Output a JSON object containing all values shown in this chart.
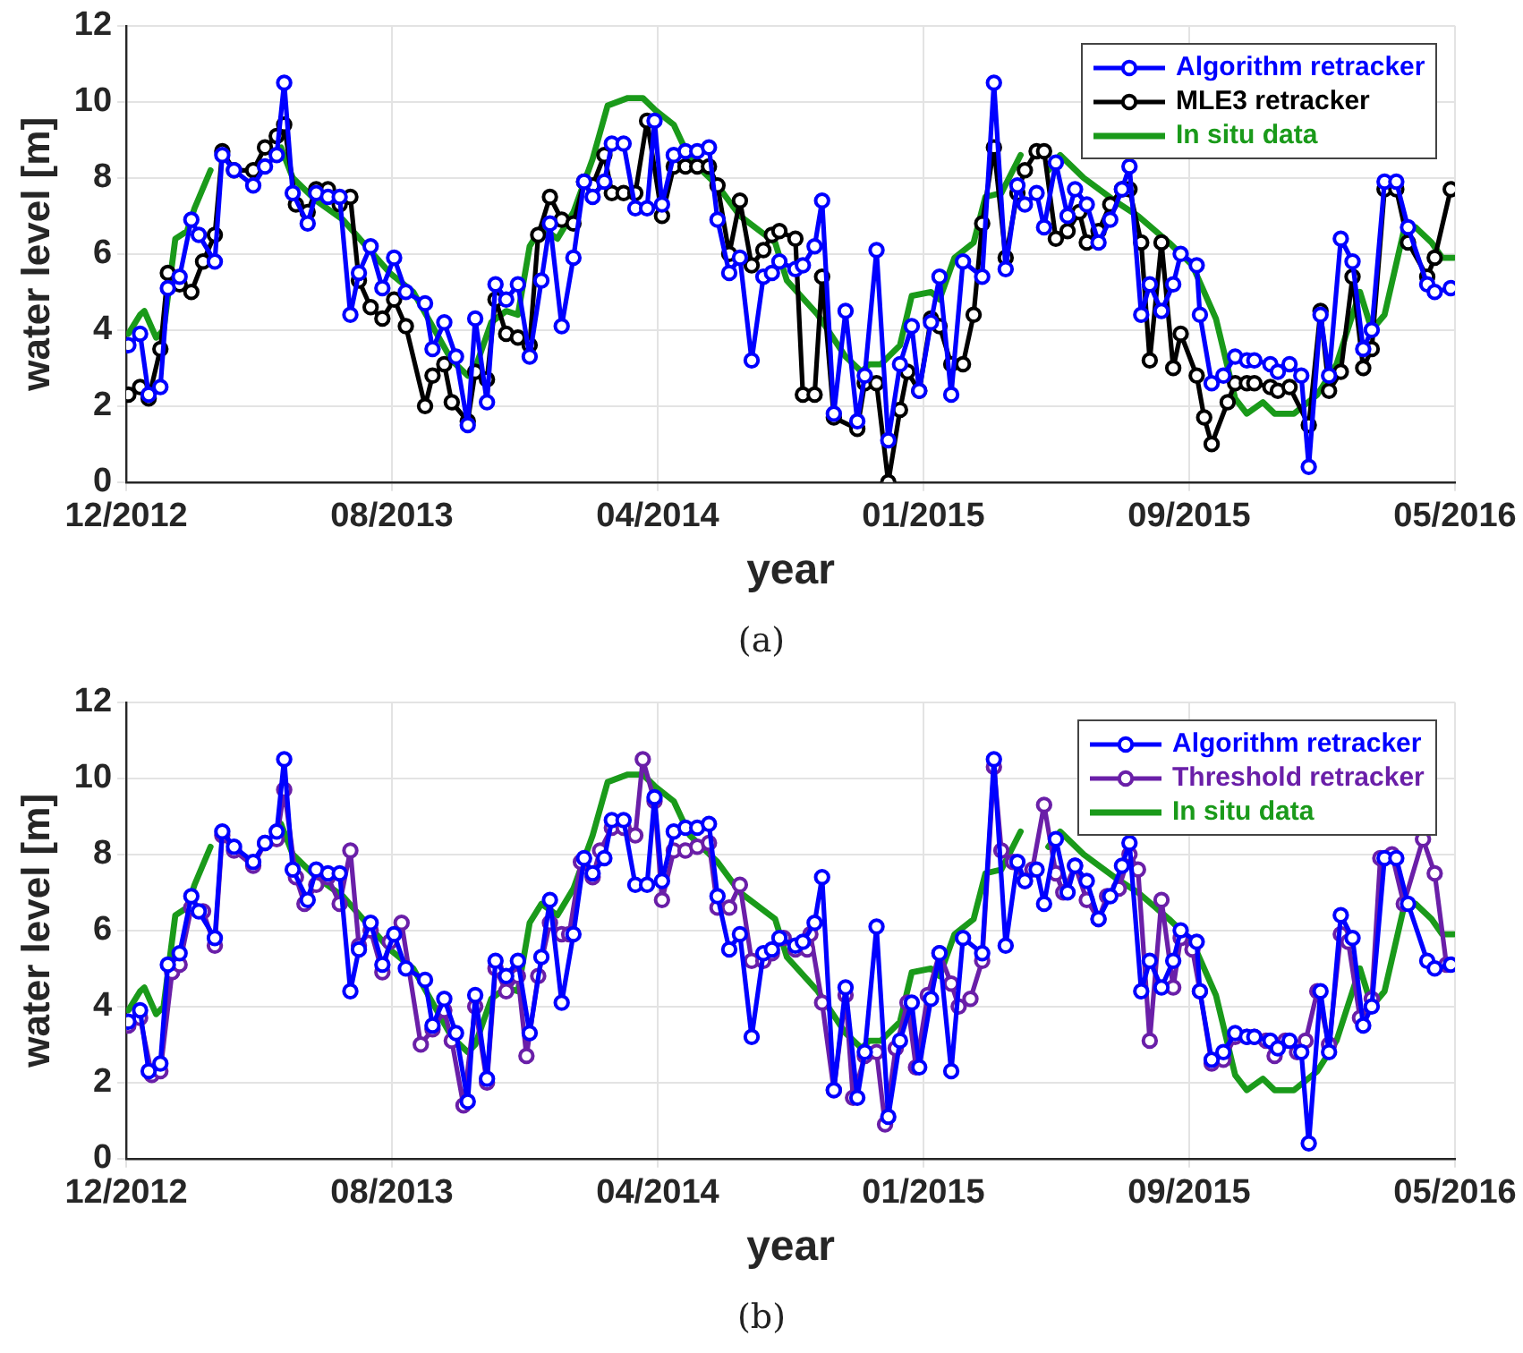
{
  "chart_data": [
    {
      "type": "line",
      "xlabel": "year",
      "ylabel": "water level [m]",
      "annotations": [
        "(a)"
      ],
      "xlim": [
        "2012-12-15",
        "2016-05-13"
      ],
      "xticks": [
        {
          "value": "2012-12-15",
          "label": "12/2012"
        },
        {
          "value": "2013-08-21",
          "label": "08/2013"
        },
        {
          "value": "2014-04-27",
          "label": "04/2014"
        },
        {
          "value": "2015-01-01",
          "label": "01/2015"
        },
        {
          "value": "2015-09-07",
          "label": "09/2015"
        },
        {
          "value": "2016-05-13",
          "label": "05/2016"
        }
      ],
      "ylim": [
        0,
        12
      ],
      "yticks": [
        0,
        2,
        4,
        6,
        8,
        10,
        12
      ],
      "grid": true,
      "legend": "top right",
      "marker": "circle",
      "line_style": "solid",
      "series": [
        {
          "name": "Algorithm retracker",
          "color": "#0000ff",
          "x": [
            "2012-12-17",
            "2012-12-28",
            "2013-01-05",
            "2013-01-16",
            "2013-01-23",
            "2013-02-03",
            "2013-02-14",
            "2013-02-21",
            "2013-03-08",
            "2013-03-15",
            "2013-03-26",
            "2013-04-13",
            "2013-04-24",
            "2013-05-05",
            "2013-05-12",
            "2013-05-20",
            "2013-06-03",
            "2013-06-11",
            "2013-06-22",
            "2013-07-03",
            "2013-07-13",
            "2013-07-21",
            "2013-08-01",
            "2013-08-12",
            "2013-08-23",
            "2013-09-03",
            "2013-09-21",
            "2013-09-28",
            "2013-10-09",
            "2013-10-20",
            "2013-10-31",
            "2013-11-07",
            "2013-11-18",
            "2013-11-26",
            "2013-12-06",
            "2013-12-17",
            "2013-12-28",
            "2014-01-08",
            "2014-01-16",
            "2014-01-27",
            "2014-02-07",
            "2014-02-17",
            "2014-02-25",
            "2014-03-08",
            "2014-03-15",
            "2014-03-26",
            "2014-04-06",
            "2014-04-17",
            "2014-04-24",
            "2014-05-01",
            "2014-05-12",
            "2014-05-23",
            "2014-06-03",
            "2014-06-14",
            "2014-06-22",
            "2014-07-03",
            "2014-07-13",
            "2014-07-24",
            "2014-08-04",
            "2014-08-12",
            "2014-08-19",
            "2014-09-03",
            "2014-09-10",
            "2014-09-21",
            "2014-09-28",
            "2014-10-09",
            "2014-10-20",
            "2014-10-31",
            "2014-11-07",
            "2014-11-18",
            "2014-11-29",
            "2014-12-10",
            "2014-12-21",
            "2014-12-28",
            "2015-01-08",
            "2015-01-16",
            "2015-01-27",
            "2015-02-07",
            "2015-02-25",
            "2015-03-08",
            "2015-03-19",
            "2015-03-30",
            "2015-04-06",
            "2015-04-17",
            "2015-04-24",
            "2015-05-05",
            "2015-05-16",
            "2015-05-23",
            "2015-06-03",
            "2015-06-14",
            "2015-06-25",
            "2015-07-06",
            "2015-07-13",
            "2015-07-24",
            "2015-08-01",
            "2015-08-12",
            "2015-08-23",
            "2015-08-30",
            "2015-09-14",
            "2015-09-17",
            "2015-09-28",
            "2015-10-09",
            "2015-10-20",
            "2015-10-31",
            "2015-11-07",
            "2015-11-22",
            "2015-11-29",
            "2015-12-10",
            "2015-12-21",
            "2015-12-28",
            "2016-01-08",
            "2016-01-16",
            "2016-01-27",
            "2016-02-07",
            "2016-02-17",
            "2016-02-25",
            "2016-03-08",
            "2016-03-19",
            "2016-03-30",
            "2016-04-17",
            "2016-04-24",
            "2016-05-09"
          ],
          "values": [
            3.6,
            3.9,
            2.3,
            2.5,
            5.1,
            5.4,
            6.9,
            6.5,
            5.8,
            8.6,
            8.2,
            7.8,
            8.3,
            8.6,
            10.5,
            7.6,
            6.8,
            7.6,
            7.5,
            7.5,
            4.4,
            5.5,
            6.2,
            5.1,
            5.9,
            5.0,
            4.7,
            3.5,
            4.2,
            3.3,
            1.5,
            4.3,
            2.1,
            5.2,
            4.8,
            5.2,
            3.3,
            5.3,
            6.8,
            4.1,
            5.9,
            7.9,
            7.5,
            7.9,
            8.9,
            8.9,
            7.2,
            7.2,
            9.5,
            7.3,
            8.6,
            8.7,
            8.7,
            8.8,
            6.9,
            5.5,
            5.9,
            3.2,
            5.4,
            5.5,
            5.8,
            5.6,
            5.7,
            6.2,
            7.4,
            1.8,
            4.5,
            1.6,
            2.8,
            6.1,
            1.1,
            3.1,
            4.1,
            2.4,
            4.2,
            5.4,
            2.3,
            5.8,
            5.4,
            10.5,
            5.6,
            7.8,
            7.3,
            7.6,
            6.7,
            8.4,
            7.0,
            7.7,
            7.3,
            6.3,
            6.9,
            7.7,
            8.3,
            4.4,
            5.2,
            4.5,
            5.2,
            6.0,
            5.7,
            4.4,
            2.6,
            2.8,
            3.3,
            3.2,
            3.2,
            3.1,
            2.9,
            3.1,
            2.8,
            0.4,
            4.4,
            2.8,
            6.4,
            5.8,
            3.5,
            4.0,
            7.9,
            7.9,
            6.7,
            5.2,
            5.0,
            5.1
          ]
        },
        {
          "name": "MLE3 retracker",
          "color": "#000000",
          "x": [
            "2012-12-17",
            "2012-12-28",
            "2013-01-05",
            "2013-01-16",
            "2013-01-23",
            "2013-02-03",
            "2013-02-14",
            "2013-02-25",
            "2013-03-08",
            "2013-03-15",
            "2013-03-26",
            "2013-04-13",
            "2013-04-24",
            "2013-05-05",
            "2013-05-12",
            "2013-05-23",
            "2013-06-03",
            "2013-06-11",
            "2013-06-22",
            "2013-07-03",
            "2013-07-13",
            "2013-07-21",
            "2013-08-01",
            "2013-08-12",
            "2013-08-23",
            "2013-09-03",
            "2013-09-21",
            "2013-09-28",
            "2013-10-09",
            "2013-10-16",
            "2013-10-31",
            "2013-11-07",
            "2013-11-18",
            "2013-11-26",
            "2013-12-06",
            "2013-12-17",
            "2013-12-28",
            "2014-01-05",
            "2014-01-16",
            "2014-01-27",
            "2014-02-07",
            "2014-02-17",
            "2014-02-25",
            "2014-03-08",
            "2014-03-15",
            "2014-03-26",
            "2014-04-06",
            "2014-04-17",
            "2014-05-01",
            "2014-05-12",
            "2014-05-23",
            "2014-06-03",
            "2014-06-14",
            "2014-06-22",
            "2014-07-03",
            "2014-07-13",
            "2014-07-24",
            "2014-08-04",
            "2014-08-12",
            "2014-08-19",
            "2014-09-03",
            "2014-09-10",
            "2014-09-21",
            "2014-09-28",
            "2014-10-09",
            "2014-10-31",
            "2014-11-07",
            "2014-11-18",
            "2014-11-29",
            "2014-12-10",
            "2014-12-17",
            "2014-12-28",
            "2015-01-08",
            "2015-01-16",
            "2015-01-27",
            "2015-02-07",
            "2015-02-17",
            "2015-02-25",
            "2015-03-08",
            "2015-03-19",
            "2015-03-30",
            "2015-04-06",
            "2015-04-17",
            "2015-04-24",
            "2015-05-05",
            "2015-05-16",
            "2015-05-27",
            "2015-06-03",
            "2015-06-14",
            "2015-06-25",
            "2015-07-06",
            "2015-07-13",
            "2015-07-24",
            "2015-08-01",
            "2015-08-12",
            "2015-08-23",
            "2015-08-30",
            "2015-09-14",
            "2015-09-21",
            "2015-09-28",
            "2015-10-13",
            "2015-10-20",
            "2015-10-31",
            "2015-11-07",
            "2015-11-22",
            "2015-11-29",
            "2015-12-10",
            "2015-12-28",
            "2016-01-08",
            "2016-01-16",
            "2016-01-27",
            "2016-02-07",
            "2016-02-17",
            "2016-02-25",
            "2016-03-08",
            "2016-03-19",
            "2016-03-30",
            "2016-04-17",
            "2016-04-24",
            "2016-05-09"
          ],
          "values": [
            2.3,
            2.5,
            2.2,
            3.5,
            5.5,
            5.2,
            5.0,
            5.8,
            6.5,
            8.7,
            8.2,
            8.2,
            8.8,
            9.1,
            9.4,
            7.3,
            7.1,
            7.7,
            7.7,
            7.3,
            7.5,
            5.3,
            4.6,
            4.3,
            4.8,
            4.1,
            2.0,
            2.8,
            3.1,
            2.1,
            1.6,
            2.9,
            2.7,
            4.8,
            3.9,
            3.8,
            3.6,
            6.5,
            7.5,
            6.9,
            6.8,
            7.9,
            7.8,
            8.6,
            7.6,
            7.6,
            7.6,
            9.5,
            7.0,
            8.3,
            8.3,
            8.3,
            8.3,
            7.8,
            6.0,
            7.4,
            5.7,
            6.1,
            6.5,
            6.6,
            6.4,
            2.3,
            2.3,
            5.4,
            1.7,
            1.4,
            2.6,
            2.6,
            0.0,
            1.9,
            2.9,
            2.4,
            4.3,
            4.1,
            3.1,
            3.1,
            4.4,
            6.8,
            8.8,
            5.9,
            7.6,
            8.2,
            8.7,
            8.7,
            6.4,
            6.6,
            7.1,
            6.3,
            6.6,
            7.3,
            7.7,
            7.7,
            6.3,
            3.2,
            6.3,
            3.0,
            3.9,
            2.8,
            1.7,
            1.0,
            2.1,
            2.6,
            2.6,
            2.6,
            2.5,
            2.4,
            2.5,
            1.5,
            4.5,
            2.4,
            2.9,
            5.4,
            3.0,
            3.5,
            7.7,
            7.7,
            6.3,
            5.4,
            5.9,
            7.7
          ]
        },
        {
          "name": "In situ data",
          "color": "#1a9a1a",
          "marker": "none",
          "x": [
            "2012-12-17",
            "2012-12-28",
            "2013-01-01",
            "2013-01-12",
            "2013-01-19",
            "2013-01-30",
            "2013-02-10",
            "2013-02-17",
            "2013-03-04",
            "2013-04-06",
            "2013-05-09",
            "2013-05-20",
            "2013-06-11",
            "2013-07-06",
            "2013-07-28",
            "2013-08-19",
            "2013-09-10",
            "2013-10-02",
            "2013-10-16",
            "2013-10-31",
            "2013-11-07",
            "2013-11-22",
            "2013-12-06",
            "2013-12-17",
            "2013-12-28",
            "2014-01-08",
            "2014-01-23",
            "2014-02-07",
            "2014-02-25",
            "2014-03-11",
            "2014-03-30",
            "2014-04-13",
            "2014-04-24",
            "2014-05-12",
            "2014-05-27",
            "2014-06-22",
            "2014-07-13",
            "2014-08-15",
            "2014-08-26",
            "2014-09-24",
            "2014-10-20",
            "2014-11-04",
            "2014-11-11",
            "2014-11-22",
            "2014-12-10",
            "2014-12-21",
            "2015-01-08",
            "2015-01-16",
            "2015-01-30",
            "2015-02-17",
            "2015-02-28",
            "2015-03-15",
            "2015-04-02",
            "2015-04-13",
            "2015-04-28",
            "2015-05-09",
            "2015-05-31",
            "2015-06-29",
            "2015-07-21",
            "2015-08-19",
            "2015-09-10",
            "2015-10-02",
            "2015-10-20",
            "2015-10-31",
            "2015-11-15",
            "2015-11-26",
            "2015-12-14",
            "2016-01-05",
            "2016-01-23",
            "2016-02-07",
            "2016-02-14",
            "2016-02-25",
            "2016-03-08",
            "2016-03-26",
            "2016-04-06",
            "2016-04-21",
            "2016-05-01",
            "2016-05-12"
          ],
          "values": [
            3.9,
            4.4,
            4.5,
            3.8,
            4.0,
            6.4,
            6.6,
            7.2,
            8.2,
            null,
            8.8,
            8.0,
            7.4,
            6.9,
            6.2,
            5.5,
            5.0,
            3.9,
            3.2,
            2.8,
            3.0,
            4.2,
            4.5,
            4.4,
            6.2,
            6.7,
            6.4,
            7.1,
            8.5,
            9.9,
            10.1,
            10.1,
            9.8,
            9.4,
            8.5,
            7.8,
            7.0,
            6.3,
            5.3,
            4.4,
            3.3,
            2.9,
            3.1,
            3.1,
            3.6,
            4.9,
            5.0,
            4.8,
            5.9,
            6.3,
            7.5,
            7.6,
            8.6,
            null,
            8.2,
            8.6,
            8.0,
            7.4,
            7.0,
            6.3,
            5.7,
            4.3,
            2.2,
            1.8,
            2.1,
            1.8,
            1.8,
            2.3,
            3.1,
            4.4,
            5.0,
            4.0,
            4.4,
            6.6,
            6.7,
            6.3,
            5.9,
            5.9
          ]
        }
      ]
    },
    {
      "type": "line",
      "xlabel": "year",
      "ylabel": "water level [m]",
      "annotations": [
        "(b)"
      ],
      "xlim": [
        "2012-12-15",
        "2016-05-13"
      ],
      "xticks": [
        {
          "value": "2012-12-15",
          "label": "12/2012"
        },
        {
          "value": "2013-08-21",
          "label": "08/2013"
        },
        {
          "value": "2014-04-27",
          "label": "04/2014"
        },
        {
          "value": "2015-01-01",
          "label": "01/2015"
        },
        {
          "value": "2015-09-07",
          "label": "09/2015"
        },
        {
          "value": "2016-05-13",
          "label": "05/2016"
        }
      ],
      "ylim": [
        0,
        12
      ],
      "yticks": [
        0,
        2,
        4,
        6,
        8,
        10,
        12
      ],
      "grid": true,
      "legend": "top right",
      "marker": "circle",
      "line_style": "solid",
      "series": [
        {
          "name": "Algorithm retracker",
          "color": "#0000ff",
          "x": [
            "2012-12-17",
            "2012-12-28",
            "2013-01-05",
            "2013-01-16",
            "2013-01-23",
            "2013-02-03",
            "2013-02-14",
            "2013-02-21",
            "2013-03-08",
            "2013-03-15",
            "2013-03-26",
            "2013-04-13",
            "2013-04-24",
            "2013-05-05",
            "2013-05-12",
            "2013-05-20",
            "2013-06-03",
            "2013-06-11",
            "2013-06-22",
            "2013-07-03",
            "2013-07-13",
            "2013-07-21",
            "2013-08-01",
            "2013-08-12",
            "2013-08-23",
            "2013-09-03",
            "2013-09-21",
            "2013-09-28",
            "2013-10-09",
            "2013-10-20",
            "2013-10-31",
            "2013-11-07",
            "2013-11-18",
            "2013-11-26",
            "2013-12-06",
            "2013-12-17",
            "2013-12-28",
            "2014-01-08",
            "2014-01-16",
            "2014-01-27",
            "2014-02-07",
            "2014-02-17",
            "2014-02-25",
            "2014-03-08",
            "2014-03-15",
            "2014-03-26",
            "2014-04-06",
            "2014-04-17",
            "2014-04-24",
            "2014-05-01",
            "2014-05-12",
            "2014-05-23",
            "2014-06-03",
            "2014-06-14",
            "2014-06-22",
            "2014-07-03",
            "2014-07-13",
            "2014-07-24",
            "2014-08-04",
            "2014-08-12",
            "2014-08-19",
            "2014-09-03",
            "2014-09-10",
            "2014-09-21",
            "2014-09-28",
            "2014-10-09",
            "2014-10-20",
            "2014-10-31",
            "2014-11-07",
            "2014-11-18",
            "2014-11-29",
            "2014-12-10",
            "2014-12-21",
            "2014-12-28",
            "2015-01-08",
            "2015-01-16",
            "2015-01-27",
            "2015-02-07",
            "2015-02-25",
            "2015-03-08",
            "2015-03-19",
            "2015-03-30",
            "2015-04-06",
            "2015-04-17",
            "2015-04-24",
            "2015-05-05",
            "2015-05-16",
            "2015-05-23",
            "2015-06-03",
            "2015-06-14",
            "2015-06-25",
            "2015-07-06",
            "2015-07-13",
            "2015-07-24",
            "2015-08-01",
            "2015-08-12",
            "2015-08-23",
            "2015-08-30",
            "2015-09-14",
            "2015-09-17",
            "2015-09-28",
            "2015-10-09",
            "2015-10-20",
            "2015-10-31",
            "2015-11-07",
            "2015-11-22",
            "2015-11-29",
            "2015-12-10",
            "2015-12-21",
            "2015-12-28",
            "2016-01-08",
            "2016-01-16",
            "2016-01-27",
            "2016-02-07",
            "2016-02-17",
            "2016-02-25",
            "2016-03-08",
            "2016-03-19",
            "2016-03-30",
            "2016-04-17",
            "2016-04-24",
            "2016-05-09"
          ],
          "values": [
            3.6,
            3.9,
            2.3,
            2.5,
            5.1,
            5.4,
            6.9,
            6.5,
            5.8,
            8.6,
            8.2,
            7.8,
            8.3,
            8.6,
            10.5,
            7.6,
            6.8,
            7.6,
            7.5,
            7.5,
            4.4,
            5.5,
            6.2,
            5.1,
            5.9,
            5.0,
            4.7,
            3.5,
            4.2,
            3.3,
            1.5,
            4.3,
            2.1,
            5.2,
            4.8,
            5.2,
            3.3,
            5.3,
            6.8,
            4.1,
            5.9,
            7.9,
            7.5,
            7.9,
            8.9,
            8.9,
            7.2,
            7.2,
            9.5,
            7.3,
            8.6,
            8.7,
            8.7,
            8.8,
            6.9,
            5.5,
            5.9,
            3.2,
            5.4,
            5.5,
            5.8,
            5.6,
            5.7,
            6.2,
            7.4,
            1.8,
            4.5,
            1.6,
            2.8,
            6.1,
            1.1,
            3.1,
            4.1,
            2.4,
            4.2,
            5.4,
            2.3,
            5.8,
            5.4,
            10.5,
            5.6,
            7.8,
            7.3,
            7.6,
            6.7,
            8.4,
            7.0,
            7.7,
            7.3,
            6.3,
            6.9,
            7.7,
            8.3,
            4.4,
            5.2,
            4.5,
            5.2,
            6.0,
            5.7,
            4.4,
            2.6,
            2.8,
            3.3,
            3.2,
            3.2,
            3.1,
            2.9,
            3.1,
            2.8,
            0.4,
            4.4,
            2.8,
            6.4,
            5.8,
            3.5,
            4.0,
            7.9,
            7.9,
            6.7,
            5.2,
            5.0,
            5.1
          ]
        },
        {
          "name": "Threshold retracker",
          "color": "#6a1fa8",
          "x": [
            "2012-12-17",
            "2012-12-28",
            "2013-01-08",
            "2013-01-16",
            "2013-01-27",
            "2013-02-03",
            "2013-02-14",
            "2013-02-25",
            "2013-03-08",
            "2013-03-15",
            "2013-03-26",
            "2013-04-13",
            "2013-04-24",
            "2013-05-05",
            "2013-05-12",
            "2013-05-23",
            "2013-05-31",
            "2013-06-11",
            "2013-06-22",
            "2013-07-03",
            "2013-07-13",
            "2013-07-21",
            "2013-08-01",
            "2013-08-12",
            "2013-08-19",
            "2013-08-30",
            "2013-09-17",
            "2013-09-28",
            "2013-10-09",
            "2013-10-16",
            "2013-10-27",
            "2013-11-07",
            "2013-11-18",
            "2013-11-26",
            "2013-12-06",
            "2013-12-17",
            "2013-12-25",
            "2014-01-05",
            "2014-01-16",
            "2014-01-27",
            "2014-02-03",
            "2014-02-14",
            "2014-02-25",
            "2014-03-04",
            "2014-03-15",
            "2014-03-26",
            "2014-04-06",
            "2014-04-13",
            "2014-04-24",
            "2014-05-01",
            "2014-05-12",
            "2014-05-23",
            "2014-06-03",
            "2014-06-14",
            "2014-06-22",
            "2014-07-03",
            "2014-07-13",
            "2014-07-24",
            "2014-08-04",
            "2014-08-12",
            "2014-08-23",
            "2014-09-03",
            "2014-09-14",
            "2014-09-17",
            "2014-09-28",
            "2014-10-09",
            "2014-10-20",
            "2014-10-27",
            "2014-11-07",
            "2014-11-18",
            "2014-11-26",
            "2014-12-06",
            "2014-12-17",
            "2014-12-25",
            "2015-01-05",
            "2015-01-16",
            "2015-01-27",
            "2015-02-03",
            "2015-02-14",
            "2015-02-25",
            "2015-03-08",
            "2015-03-15",
            "2015-03-26",
            "2015-04-06",
            "2015-04-13",
            "2015-04-24",
            "2015-05-05",
            "2015-05-12",
            "2015-05-23",
            "2015-06-03",
            "2015-06-14",
            "2015-06-22",
            "2015-07-03",
            "2015-07-13",
            "2015-07-21",
            "2015-08-01",
            "2015-08-12",
            "2015-08-23",
            "2015-08-30",
            "2015-09-10",
            "2015-09-17",
            "2015-09-28",
            "2015-10-09",
            "2015-10-20",
            "2015-10-31",
            "2015-11-07",
            "2015-11-18",
            "2015-11-26",
            "2015-12-06",
            "2015-12-17",
            "2015-12-25",
            "2016-01-05",
            "2016-01-16",
            "2016-01-27",
            "2016-02-03",
            "2016-02-14",
            "2016-02-25",
            "2016-03-04",
            "2016-03-15",
            "2016-03-26",
            "2016-04-13",
            "2016-04-24",
            "2016-05-05"
          ],
          "values": [
            3.5,
            3.7,
            2.2,
            2.3,
            4.9,
            5.1,
            6.6,
            6.5,
            5.6,
            8.5,
            8.1,
            7.7,
            8.3,
            8.4,
            9.7,
            7.4,
            6.7,
            7.2,
            7.4,
            6.7,
            8.1,
            5.6,
            6.0,
            4.9,
            5.7,
            6.2,
            3.0,
            3.4,
            3.9,
            3.1,
            1.4,
            4.0,
            2.0,
            5.0,
            4.4,
            4.8,
            2.7,
            4.8,
            6.2,
            5.9,
            5.9,
            7.8,
            7.4,
            8.1,
            8.7,
            8.7,
            8.5,
            10.5,
            9.4,
            6.8,
            8.1,
            8.1,
            8.2,
            8.3,
            6.6,
            6.6,
            7.2,
            5.2,
            5.2,
            5.4,
            5.8,
            5.5,
            5.5,
            5.9,
            4.1,
            1.8,
            4.3,
            1.6,
            2.7,
            2.8,
            0.9,
            2.9,
            4.1,
            2.4,
            4.3,
            5.4,
            4.6,
            4.0,
            4.2,
            5.2,
            10.3,
            8.1,
            7.8,
            7.3,
            7.6,
            9.3,
            7.5,
            7.0,
            7.7,
            6.8,
            6.3,
            6.9,
            7.1,
            8.0,
            7.6,
            3.1,
            6.8,
            4.5,
            5.8,
            5.5,
            4.4,
            2.5,
            2.6,
            3.2,
            3.2,
            3.2,
            3.1,
            2.7,
            3.1,
            2.8,
            3.1,
            4.4,
            3.0,
            5.9,
            5.7,
            3.7,
            4.2,
            7.9,
            8.0,
            6.7,
            8.4,
            7.5,
            5.1
          ]
        },
        {
          "name": "In situ data",
          "color": "#1a9a1a",
          "marker": "none",
          "x": [
            "2012-12-17",
            "2012-12-28",
            "2013-01-01",
            "2013-01-12",
            "2013-01-19",
            "2013-01-30",
            "2013-02-10",
            "2013-02-17",
            "2013-03-04",
            "2013-04-06",
            "2013-05-09",
            "2013-05-20",
            "2013-06-11",
            "2013-07-06",
            "2013-07-28",
            "2013-08-19",
            "2013-09-10",
            "2013-10-02",
            "2013-10-16",
            "2013-10-31",
            "2013-11-07",
            "2013-11-22",
            "2013-12-06",
            "2013-12-17",
            "2013-12-28",
            "2014-01-08",
            "2014-01-23",
            "2014-02-07",
            "2014-02-25",
            "2014-03-11",
            "2014-03-30",
            "2014-04-13",
            "2014-04-24",
            "2014-05-12",
            "2014-05-27",
            "2014-06-22",
            "2014-07-13",
            "2014-08-15",
            "2014-08-26",
            "2014-09-24",
            "2014-10-20",
            "2014-11-04",
            "2014-11-11",
            "2014-11-22",
            "2014-12-10",
            "2014-12-21",
            "2015-01-08",
            "2015-01-16",
            "2015-01-30",
            "2015-02-17",
            "2015-02-28",
            "2015-03-15",
            "2015-04-02",
            "2015-04-13",
            "2015-04-28",
            "2015-05-09",
            "2015-05-31",
            "2015-06-29",
            "2015-07-21",
            "2015-08-19",
            "2015-09-10",
            "2015-10-02",
            "2015-10-20",
            "2015-10-31",
            "2015-11-15",
            "2015-11-26",
            "2015-12-14",
            "2016-01-05",
            "2016-01-23",
            "2016-02-07",
            "2016-02-14",
            "2016-02-25",
            "2016-03-08",
            "2016-03-26",
            "2016-04-06",
            "2016-04-21",
            "2016-05-01",
            "2016-05-12"
          ],
          "values": [
            3.9,
            4.4,
            4.5,
            3.8,
            4.0,
            6.4,
            6.6,
            7.2,
            8.2,
            null,
            8.8,
            8.0,
            7.4,
            6.9,
            6.2,
            5.5,
            5.0,
            3.9,
            3.2,
            2.8,
            3.0,
            4.2,
            4.5,
            4.4,
            6.2,
            6.7,
            6.4,
            7.1,
            8.5,
            9.9,
            10.1,
            10.1,
            9.8,
            9.4,
            8.5,
            7.8,
            7.0,
            6.3,
            5.3,
            4.4,
            3.3,
            2.9,
            3.1,
            3.1,
            3.6,
            4.9,
            5.0,
            4.8,
            5.9,
            6.3,
            7.5,
            7.6,
            8.6,
            null,
            8.2,
            8.6,
            8.0,
            7.4,
            7.0,
            6.3,
            5.7,
            4.3,
            2.2,
            1.8,
            2.1,
            1.8,
            1.8,
            2.3,
            3.1,
            4.4,
            5.0,
            4.0,
            4.4,
            6.6,
            6.7,
            6.3,
            5.9,
            5.9
          ]
        }
      ]
    }
  ]
}
